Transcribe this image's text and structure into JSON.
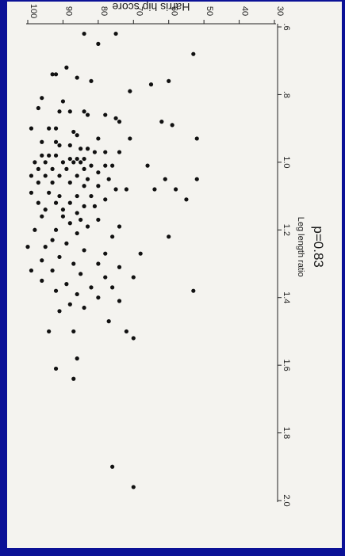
{
  "chart_data": {
    "type": "scatter",
    "title": "",
    "xlabel": "Leg length ratio",
    "ylabel": "Harris hip score",
    "annotation": "p=0.83",
    "xlim": [
      0.6,
      2.0
    ],
    "ylim": [
      30,
      100
    ],
    "x_ticks": [
      0.6,
      0.8,
      1.0,
      1.2,
      1.4,
      1.6,
      1.8,
      2.0
    ],
    "x_tick_labels": [
      ".6",
      ".8",
      "1.0",
      "1.2",
      "1.4",
      "1.6",
      "1.8",
      "2.0"
    ],
    "y_ticks": [
      30,
      40,
      50,
      60,
      70,
      80,
      90,
      100
    ],
    "y_tick_labels": [
      "30",
      "40",
      "50",
      "60",
      "70",
      "80",
      "90",
      "100"
    ],
    "grid": false,
    "rotation": "plot rotated 90 degrees clockwise",
    "points": [
      [
        0.65,
        80
      ],
      [
        0.62,
        84
      ],
      [
        0.62,
        75
      ],
      [
        0.68,
        53
      ],
      [
        0.72,
        89
      ],
      [
        0.74,
        92
      ],
      [
        0.74,
        93
      ],
      [
        0.75,
        86
      ],
      [
        0.76,
        82
      ],
      [
        0.77,
        65
      ],
      [
        0.76,
        60
      ],
      [
        0.79,
        71
      ],
      [
        0.81,
        96
      ],
      [
        0.82,
        90
      ],
      [
        0.84,
        97
      ],
      [
        0.85,
        91
      ],
      [
        0.85,
        88
      ],
      [
        0.85,
        84
      ],
      [
        0.86,
        83
      ],
      [
        0.86,
        78
      ],
      [
        0.87,
        75
      ],
      [
        0.88,
        74
      ],
      [
        0.88,
        62
      ],
      [
        0.89,
        59
      ],
      [
        0.9,
        99
      ],
      [
        0.9,
        94
      ],
      [
        0.9,
        92
      ],
      [
        0.91,
        87
      ],
      [
        0.92,
        86
      ],
      [
        0.93,
        80
      ],
      [
        0.93,
        71
      ],
      [
        0.93,
        52
      ],
      [
        0.94,
        96
      ],
      [
        0.94,
        92
      ],
      [
        0.95,
        91
      ],
      [
        0.95,
        88
      ],
      [
        0.96,
        85
      ],
      [
        0.96,
        83
      ],
      [
        0.97,
        81
      ],
      [
        0.97,
        78
      ],
      [
        0.97,
        74
      ],
      [
        0.98,
        96
      ],
      [
        0.98,
        94
      ],
      [
        0.98,
        92
      ],
      [
        0.99,
        88
      ],
      [
        0.99,
        86
      ],
      [
        0.99,
        84
      ],
      [
        1.0,
        98
      ],
      [
        1.0,
        95
      ],
      [
        1.0,
        90
      ],
      [
        1.0,
        87
      ],
      [
        1.0,
        85
      ],
      [
        1.01,
        82
      ],
      [
        1.01,
        78
      ],
      [
        1.01,
        76
      ],
      [
        1.01,
        66
      ],
      [
        1.02,
        97
      ],
      [
        1.02,
        93
      ],
      [
        1.02,
        89
      ],
      [
        1.02,
        84
      ],
      [
        1.03,
        80
      ],
      [
        1.04,
        99
      ],
      [
        1.04,
        95
      ],
      [
        1.04,
        91
      ],
      [
        1.04,
        86
      ],
      [
        1.05,
        83
      ],
      [
        1.05,
        77
      ],
      [
        1.05,
        61
      ],
      [
        1.05,
        52
      ],
      [
        1.06,
        97
      ],
      [
        1.06,
        93
      ],
      [
        1.06,
        88
      ],
      [
        1.07,
        84
      ],
      [
        1.07,
        80
      ],
      [
        1.08,
        75
      ],
      [
        1.08,
        72
      ],
      [
        1.08,
        64
      ],
      [
        1.08,
        58
      ],
      [
        1.09,
        99
      ],
      [
        1.09,
        94
      ],
      [
        1.1,
        91
      ],
      [
        1.1,
        86
      ],
      [
        1.1,
        82
      ],
      [
        1.11,
        78
      ],
      [
        1.11,
        55
      ],
      [
        1.12,
        97
      ],
      [
        1.12,
        92
      ],
      [
        1.12,
        88
      ],
      [
        1.13,
        84
      ],
      [
        1.13,
        81
      ],
      [
        1.14,
        95
      ],
      [
        1.14,
        90
      ],
      [
        1.15,
        86
      ],
      [
        1.16,
        96
      ],
      [
        1.16,
        90
      ],
      [
        1.17,
        85
      ],
      [
        1.17,
        80
      ],
      [
        1.18,
        88
      ],
      [
        1.19,
        83
      ],
      [
        1.19,
        74
      ],
      [
        1.2,
        98
      ],
      [
        1.2,
        92
      ],
      [
        1.21,
        86
      ],
      [
        1.22,
        76
      ],
      [
        1.22,
        60
      ],
      [
        1.23,
        93
      ],
      [
        1.24,
        89
      ],
      [
        1.25,
        100
      ],
      [
        1.25,
        95
      ],
      [
        1.26,
        84
      ],
      [
        1.27,
        78
      ],
      [
        1.27,
        68
      ],
      [
        1.28,
        91
      ],
      [
        1.29,
        96
      ],
      [
        1.3,
        87
      ],
      [
        1.3,
        80
      ],
      [
        1.31,
        74
      ],
      [
        1.32,
        99
      ],
      [
        1.32,
        93
      ],
      [
        1.33,
        85
      ],
      [
        1.34,
        78
      ],
      [
        1.34,
        70
      ],
      [
        1.35,
        96
      ],
      [
        1.36,
        89
      ],
      [
        1.37,
        82
      ],
      [
        1.37,
        76
      ],
      [
        1.38,
        92
      ],
      [
        1.38,
        53
      ],
      [
        1.39,
        86
      ],
      [
        1.4,
        80
      ],
      [
        1.41,
        74
      ],
      [
        1.42,
        88
      ],
      [
        1.43,
        84
      ],
      [
        1.44,
        91
      ],
      [
        1.47,
        77
      ],
      [
        1.5,
        94
      ],
      [
        1.5,
        87
      ],
      [
        1.5,
        72
      ],
      [
        1.52,
        70
      ],
      [
        1.58,
        86
      ],
      [
        1.61,
        92
      ],
      [
        1.64,
        87
      ],
      [
        1.9,
        76
      ],
      [
        1.96,
        70
      ]
    ]
  }
}
